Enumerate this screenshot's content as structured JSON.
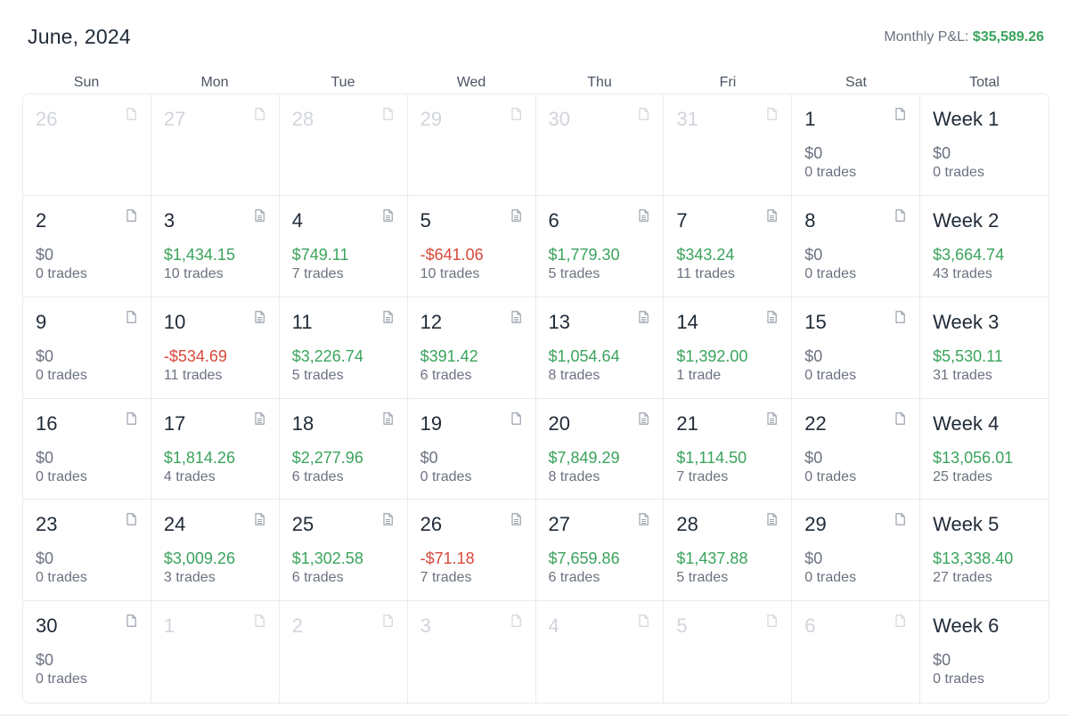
{
  "header": {
    "title": "June, 2024",
    "monthly_pnl_label": "Monthly P&L:",
    "monthly_pnl_value": "$35,589.26"
  },
  "weekdays": [
    "Sun",
    "Mon",
    "Tue",
    "Wed",
    "Thu",
    "Fri",
    "Sat",
    "Total"
  ],
  "colors": {
    "positive": "#3aa35c",
    "negative": "#d9483b",
    "neutral": "#6b7280",
    "faded": "#d1d5db"
  },
  "icons": {
    "day_note": "document-icon"
  },
  "weeks": [
    {
      "days": [
        {
          "day": "26",
          "faded": true
        },
        {
          "day": "27",
          "faded": true
        },
        {
          "day": "28",
          "faded": true
        },
        {
          "day": "29",
          "faded": true
        },
        {
          "day": "30",
          "faded": true
        },
        {
          "day": "31",
          "faded": true
        },
        {
          "day": "1",
          "amount": "$0",
          "trades": "0 trades",
          "sign": "zero"
        }
      ],
      "total": {
        "label": "Week 1",
        "amount": "$0",
        "trades": "0 trades",
        "sign": "zero"
      }
    },
    {
      "days": [
        {
          "day": "2",
          "amount": "$0",
          "trades": "0 trades",
          "sign": "zero"
        },
        {
          "day": "3",
          "amount": "$1,434.15",
          "trades": "10 trades",
          "sign": "pos",
          "has_note": true
        },
        {
          "day": "4",
          "amount": "$749.11",
          "trades": "7 trades",
          "sign": "pos",
          "has_note": true
        },
        {
          "day": "5",
          "amount": "-$641.06",
          "trades": "10 trades",
          "sign": "neg",
          "has_note": true
        },
        {
          "day": "6",
          "amount": "$1,779.30",
          "trades": "5 trades",
          "sign": "pos",
          "has_note": true
        },
        {
          "day": "7",
          "amount": "$343.24",
          "trades": "11 trades",
          "sign": "pos",
          "has_note": true
        },
        {
          "day": "8",
          "amount": "$0",
          "trades": "0 trades",
          "sign": "zero"
        }
      ],
      "total": {
        "label": "Week 2",
        "amount": "$3,664.74",
        "trades": "43 trades",
        "sign": "pos"
      }
    },
    {
      "days": [
        {
          "day": "9",
          "amount": "$0",
          "trades": "0 trades",
          "sign": "zero"
        },
        {
          "day": "10",
          "amount": "-$534.69",
          "trades": "11 trades",
          "sign": "neg",
          "has_note": true
        },
        {
          "day": "11",
          "amount": "$3,226.74",
          "trades": "5 trades",
          "sign": "pos",
          "has_note": true
        },
        {
          "day": "12",
          "amount": "$391.42",
          "trades": "6 trades",
          "sign": "pos",
          "has_note": true
        },
        {
          "day": "13",
          "amount": "$1,054.64",
          "trades": "8 trades",
          "sign": "pos",
          "has_note": true
        },
        {
          "day": "14",
          "amount": "$1,392.00",
          "trades": "1 trade",
          "sign": "pos",
          "has_note": true
        },
        {
          "day": "15",
          "amount": "$0",
          "trades": "0 trades",
          "sign": "zero"
        }
      ],
      "total": {
        "label": "Week 3",
        "amount": "$5,530.11",
        "trades": "31 trades",
        "sign": "pos"
      }
    },
    {
      "days": [
        {
          "day": "16",
          "amount": "$0",
          "trades": "0 trades",
          "sign": "zero"
        },
        {
          "day": "17",
          "amount": "$1,814.26",
          "trades": "4 trades",
          "sign": "pos",
          "has_note": true
        },
        {
          "day": "18",
          "amount": "$2,277.96",
          "trades": "6 trades",
          "sign": "pos",
          "has_note": true
        },
        {
          "day": "19",
          "amount": "$0",
          "trades": "0 trades",
          "sign": "zero"
        },
        {
          "day": "20",
          "amount": "$7,849.29",
          "trades": "8 trades",
          "sign": "pos",
          "has_note": true
        },
        {
          "day": "21",
          "amount": "$1,114.50",
          "trades": "7 trades",
          "sign": "pos",
          "has_note": true
        },
        {
          "day": "22",
          "amount": "$0",
          "trades": "0 trades",
          "sign": "zero"
        }
      ],
      "total": {
        "label": "Week 4",
        "amount": "$13,056.01",
        "trades": "25 trades",
        "sign": "pos"
      }
    },
    {
      "days": [
        {
          "day": "23",
          "amount": "$0",
          "trades": "0 trades",
          "sign": "zero"
        },
        {
          "day": "24",
          "amount": "$3,009.26",
          "trades": "3 trades",
          "sign": "pos",
          "has_note": true
        },
        {
          "day": "25",
          "amount": "$1,302.58",
          "trades": "6 trades",
          "sign": "pos",
          "has_note": true
        },
        {
          "day": "26",
          "amount": "-$71.18",
          "trades": "7 trades",
          "sign": "neg",
          "has_note": true
        },
        {
          "day": "27",
          "amount": "$7,659.86",
          "trades": "6 trades",
          "sign": "pos",
          "has_note": true
        },
        {
          "day": "28",
          "amount": "$1,437.88",
          "trades": "5 trades",
          "sign": "pos",
          "has_note": true
        },
        {
          "day": "29",
          "amount": "$0",
          "trades": "0 trades",
          "sign": "zero"
        }
      ],
      "total": {
        "label": "Week 5",
        "amount": "$13,338.40",
        "trades": "27 trades",
        "sign": "pos"
      }
    },
    {
      "days": [
        {
          "day": "30",
          "amount": "$0",
          "trades": "0 trades",
          "sign": "zero"
        },
        {
          "day": "1",
          "faded": true
        },
        {
          "day": "2",
          "faded": true
        },
        {
          "day": "3",
          "faded": true
        },
        {
          "day": "4",
          "faded": true
        },
        {
          "day": "5",
          "faded": true
        },
        {
          "day": "6",
          "faded": true
        }
      ],
      "total": {
        "label": "Week 6",
        "amount": "$0",
        "trades": "0 trades",
        "sign": "zero"
      }
    }
  ]
}
